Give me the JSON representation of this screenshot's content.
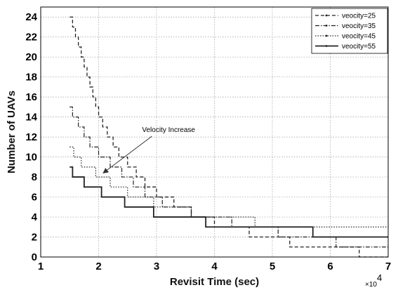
{
  "chart_data": {
    "type": "line",
    "xlabel": "Revisit Time (sec)",
    "ylabel": "Number of UAVs",
    "x_multiplier_base": "×10",
    "x_multiplier_exp": "4",
    "xlim": [
      1,
      7
    ],
    "ylim": [
      0,
      25
    ],
    "xticks": [
      1,
      2,
      3,
      4,
      5,
      6,
      7
    ],
    "yticks": [
      0,
      2,
      4,
      6,
      8,
      10,
      12,
      14,
      16,
      18,
      20,
      22,
      24
    ],
    "grid": true,
    "legend_position": "top-right",
    "series": [
      {
        "name": "veocity=25",
        "style": "dashed",
        "x": [
          1.5,
          1.55,
          1.6,
          1.65,
          1.7,
          1.75,
          1.8,
          1.85,
          1.9,
          1.95,
          2.0,
          2.07,
          2.15,
          2.25,
          2.35,
          2.5,
          2.65,
          2.8,
          3.0,
          3.3,
          3.6,
          4.0,
          4.6,
          5.3,
          6.5,
          7.0
        ],
        "y": [
          24,
          23,
          22,
          21,
          20,
          19,
          18,
          17,
          16,
          15,
          14,
          13,
          12,
          11,
          10,
          9,
          8,
          7,
          6,
          5,
          4,
          3,
          2,
          1,
          0,
          0
        ]
      },
      {
        "name": "veocity=35",
        "style": "dashdot",
        "x": [
          1.5,
          1.55,
          1.65,
          1.75,
          1.85,
          2.0,
          2.2,
          2.4,
          2.6,
          2.8,
          3.1,
          3.6,
          4.3,
          5.1,
          6.1,
          7.0
        ],
        "y": [
          15,
          14,
          13,
          12,
          11,
          10,
          9,
          8,
          7,
          6,
          5,
          4,
          3,
          2,
          1,
          1
        ]
      },
      {
        "name": "veocity=45",
        "style": "dotted",
        "x": [
          1.5,
          1.57,
          1.7,
          1.95,
          2.2,
          2.5,
          2.95,
          3.6,
          4.7,
          7.0
        ],
        "y": [
          11,
          10,
          9,
          8,
          7,
          6,
          5,
          4,
          3,
          3
        ]
      },
      {
        "name": "veocity=55",
        "style": "solid",
        "x": [
          1.5,
          1.55,
          1.75,
          2.05,
          2.45,
          2.95,
          3.85,
          5.7,
          7.0
        ],
        "y": [
          9,
          8,
          7,
          6,
          5,
          4,
          3,
          2,
          2
        ]
      }
    ],
    "annotations": [
      {
        "text": "Velocity Increase",
        "text_x": 2.75,
        "text_y": 12.5,
        "arrow_to_x": 2.08,
        "arrow_to_y": 8.4
      }
    ]
  }
}
